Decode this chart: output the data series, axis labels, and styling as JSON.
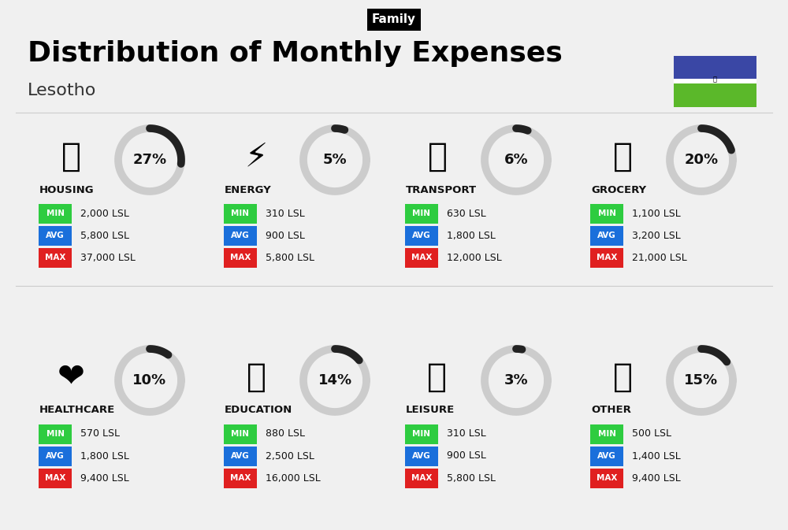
{
  "title": "Distribution of Monthly Expenses",
  "subtitle": "Family",
  "country": "Lesotho",
  "bg_color": "#f0f0f0",
  "categories": [
    {
      "name": "HOUSING",
      "pct": 27,
      "min": "2,000 LSL",
      "avg": "5,800 LSL",
      "max": "37,000 LSL",
      "row": 0,
      "col": 0
    },
    {
      "name": "ENERGY",
      "pct": 5,
      "min": "310 LSL",
      "avg": "900 LSL",
      "max": "5,800 LSL",
      "row": 0,
      "col": 1
    },
    {
      "name": "TRANSPORT",
      "pct": 6,
      "min": "630 LSL",
      "avg": "1,800 LSL",
      "max": "12,000 LSL",
      "row": 0,
      "col": 2
    },
    {
      "name": "GROCERY",
      "pct": 20,
      "min": "1,100 LSL",
      "avg": "3,200 LSL",
      "max": "21,000 LSL",
      "row": 0,
      "col": 3
    },
    {
      "name": "HEALTHCARE",
      "pct": 10,
      "min": "570 LSL",
      "avg": "1,800 LSL",
      "max": "9,400 LSL",
      "row": 1,
      "col": 0
    },
    {
      "name": "EDUCATION",
      "pct": 14,
      "min": "880 LSL",
      "avg": "2,500 LSL",
      "max": "16,000 LSL",
      "row": 1,
      "col": 1
    },
    {
      "name": "LEISURE",
      "pct": 3,
      "min": "310 LSL",
      "avg": "900 LSL",
      "max": "5,800 LSL",
      "row": 1,
      "col": 2
    },
    {
      "name": "OTHER",
      "pct": 15,
      "min": "500 LSL",
      "avg": "1,400 LSL",
      "max": "9,400 LSL",
      "row": 1,
      "col": 3
    }
  ],
  "min_color": "#2ecc40",
  "avg_color": "#1a6fdb",
  "max_color": "#e02020",
  "label_text_color": "#ffffff",
  "value_text_color": "#111111",
  "category_name_color": "#111111",
  "pct_color": "#111111",
  "arc_done_color": "#222222",
  "arc_bg_color": "#cccccc",
  "flag_blue": "#3A47A5",
  "flag_white": "#FFFFFF",
  "flag_green": "#5BB82A"
}
